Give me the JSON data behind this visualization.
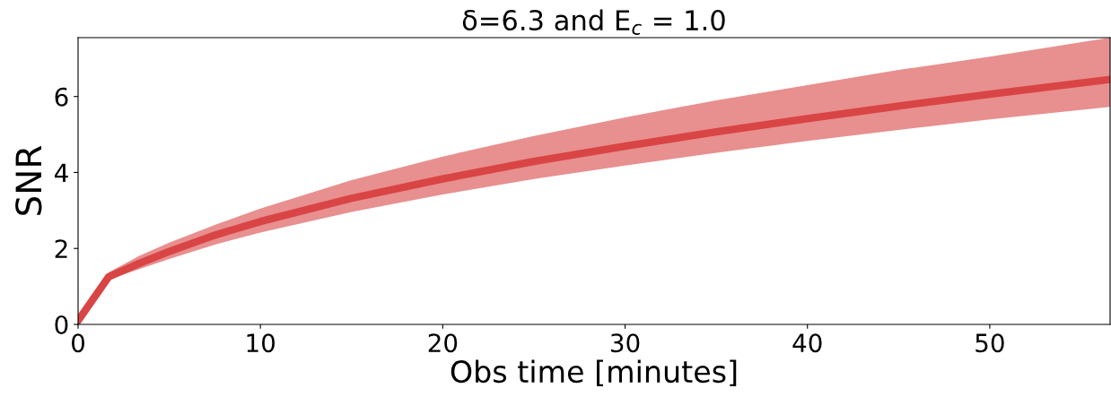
{
  "chart_data": {
    "type": "line",
    "title": "δ=6.3 and E$_{c}$ = 1.0",
    "xlabel": "Obs time [minutes]",
    "ylabel": "SNR",
    "x": [
      0,
      1.67,
      3.33,
      5,
      7.5,
      10,
      15,
      20,
      25,
      30,
      35,
      40,
      45,
      50,
      56.6
    ],
    "series": [
      {
        "color": "#d94545",
        "values": [
          0.1,
          1.25,
          1.6,
          1.92,
          2.35,
          2.71,
          3.32,
          3.83,
          4.29,
          4.69,
          5.07,
          5.42,
          5.75,
          6.06,
          6.45
        ],
        "upper": [
          0.2,
          1.37,
          1.8,
          2.15,
          2.62,
          3.05,
          3.8,
          4.42,
          4.96,
          5.45,
          5.9,
          6.3,
          6.7,
          7.05,
          7.55
        ],
        "lower": [
          0.0,
          1.18,
          1.45,
          1.72,
          2.1,
          2.42,
          2.96,
          3.42,
          3.83,
          4.18,
          4.52,
          4.83,
          5.12,
          5.4,
          5.73
        ]
      }
    ],
    "xlim": [
      0,
      56.6
    ],
    "ylim": [
      0,
      7.55
    ],
    "xticks": [
      0,
      10,
      20,
      30,
      40,
      50
    ],
    "yticks": [
      0,
      2,
      4,
      6
    ],
    "grid": false
  }
}
